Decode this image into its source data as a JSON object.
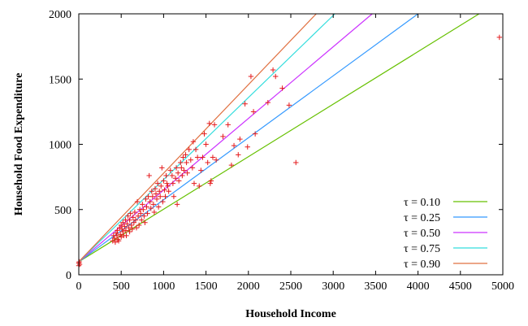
{
  "chart_data": {
    "type": "scatter",
    "title": "",
    "xlabel": "Household Income",
    "ylabel": "Household Food Expenditure",
    "xlim": [
      0,
      5000
    ],
    "ylim": [
      0,
      2000
    ],
    "x_ticks": [
      "0",
      "500",
      "1000",
      "1500",
      "2000",
      "2500",
      "3000",
      "3500",
      "4000",
      "4500",
      "5000"
    ],
    "y_ticks": [
      "0",
      "500",
      "1000",
      "1500",
      "2000"
    ],
    "grid": false,
    "legend_position": "bottom-right",
    "points": {
      "marker": "+",
      "color": "#e41a1c",
      "values": [
        [
          0,
          70
        ],
        [
          0,
          90
        ],
        [
          5,
          100
        ],
        [
          10,
          80
        ],
        [
          400,
          260
        ],
        [
          410,
          300
        ],
        [
          420,
          280
        ],
        [
          430,
          250
        ],
        [
          440,
          320
        ],
        [
          450,
          300
        ],
        [
          455,
          340
        ],
        [
          460,
          270
        ],
        [
          470,
          260
        ],
        [
          480,
          360
        ],
        [
          490,
          310
        ],
        [
          500,
          290
        ],
        [
          500,
          380
        ],
        [
          510,
          350
        ],
        [
          520,
          330
        ],
        [
          520,
          400
        ],
        [
          530,
          300
        ],
        [
          540,
          370
        ],
        [
          550,
          420
        ],
        [
          555,
          340
        ],
        [
          560,
          300
        ],
        [
          570,
          390
        ],
        [
          580,
          450
        ],
        [
          590,
          360
        ],
        [
          600,
          330
        ],
        [
          600,
          420
        ],
        [
          610,
          470
        ],
        [
          620,
          380
        ],
        [
          630,
          350
        ],
        [
          640,
          440
        ],
        [
          650,
          400
        ],
        [
          660,
          480
        ],
        [
          670,
          420
        ],
        [
          680,
          360
        ],
        [
          690,
          560
        ],
        [
          700,
          450
        ],
        [
          710,
          380
        ],
        [
          720,
          500
        ],
        [
          730,
          470
        ],
        [
          740,
          420
        ],
        [
          750,
          540
        ],
        [
          760,
          500
        ],
        [
          770,
          450
        ],
        [
          780,
          400
        ],
        [
          790,
          580
        ],
        [
          800,
          520
        ],
        [
          810,
          470
        ],
        [
          820,
          600
        ],
        [
          830,
          760
        ],
        [
          840,
          560
        ],
        [
          850,
          510
        ],
        [
          860,
          640
        ],
        [
          870,
          600
        ],
        [
          880,
          540
        ],
        [
          890,
          480
        ],
        [
          900,
          660
        ],
        [
          910,
          620
        ],
        [
          920,
          580
        ],
        [
          930,
          700
        ],
        [
          940,
          520
        ],
        [
          950,
          640
        ],
        [
          960,
          600
        ],
        [
          970,
          680
        ],
        [
          980,
          820
        ],
        [
          990,
          560
        ],
        [
          1000,
          720
        ],
        [
          1010,
          650
        ],
        [
          1020,
          600
        ],
        [
          1030,
          760
        ],
        [
          1040,
          700
        ],
        [
          1050,
          680
        ],
        [
          1060,
          640
        ],
        [
          1080,
          800
        ],
        [
          1100,
          760
        ],
        [
          1110,
          700
        ],
        [
          1120,
          600
        ],
        [
          1140,
          740
        ],
        [
          1150,
          820
        ],
        [
          1160,
          540
        ],
        [
          1170,
          780
        ],
        [
          1180,
          720
        ],
        [
          1200,
          860
        ],
        [
          1210,
          820
        ],
        [
          1220,
          760
        ],
        [
          1230,
          900
        ],
        [
          1240,
          800
        ],
        [
          1260,
          920
        ],
        [
          1270,
          860
        ],
        [
          1280,
          780
        ],
        [
          1300,
          960
        ],
        [
          1320,
          880
        ],
        [
          1340,
          820
        ],
        [
          1350,
          1020
        ],
        [
          1360,
          700
        ],
        [
          1380,
          960
        ],
        [
          1400,
          900
        ],
        [
          1420,
          680
        ],
        [
          1440,
          800
        ],
        [
          1460,
          900
        ],
        [
          1480,
          1080
        ],
        [
          1500,
          1000
        ],
        [
          1520,
          860
        ],
        [
          1540,
          1160
        ],
        [
          1550,
          700
        ],
        [
          1560,
          720
        ],
        [
          1580,
          900
        ],
        [
          1600,
          1150
        ],
        [
          1620,
          880
        ],
        [
          1700,
          1060
        ],
        [
          1760,
          1150
        ],
        [
          1800,
          840
        ],
        [
          1830,
          990
        ],
        [
          1880,
          920
        ],
        [
          1900,
          1040
        ],
        [
          1960,
          1310
        ],
        [
          1990,
          980
        ],
        [
          2030,
          1520
        ],
        [
          2060,
          1250
        ],
        [
          2080,
          1080
        ],
        [
          2230,
          1320
        ],
        [
          2290,
          1570
        ],
        [
          2320,
          1520
        ],
        [
          2400,
          1430
        ],
        [
          2480,
          1300
        ],
        [
          2560,
          860
        ],
        [
          4960,
          1820
        ]
      ]
    },
    "series": [
      {
        "name": "τ = 0.10",
        "color": "#66c000",
        "x": [
          0,
          4720
        ],
        "y": [
          100,
          2000
        ]
      },
      {
        "name": "τ = 0.25",
        "color": "#3399ff",
        "x": [
          0,
          4000
        ],
        "y": [
          100,
          2000
        ]
      },
      {
        "name": "τ = 0.50",
        "color": "#cc33ff",
        "x": [
          0,
          3460
        ],
        "y": [
          100,
          2000
        ]
      },
      {
        "name": "τ = 0.75",
        "color": "#33dddd",
        "x": [
          0,
          3020
        ],
        "y": [
          100,
          2000
        ]
      },
      {
        "name": "τ = 0.90",
        "color": "#e07040",
        "x": [
          0,
          2800
        ],
        "y": [
          100,
          2000
        ]
      }
    ]
  }
}
